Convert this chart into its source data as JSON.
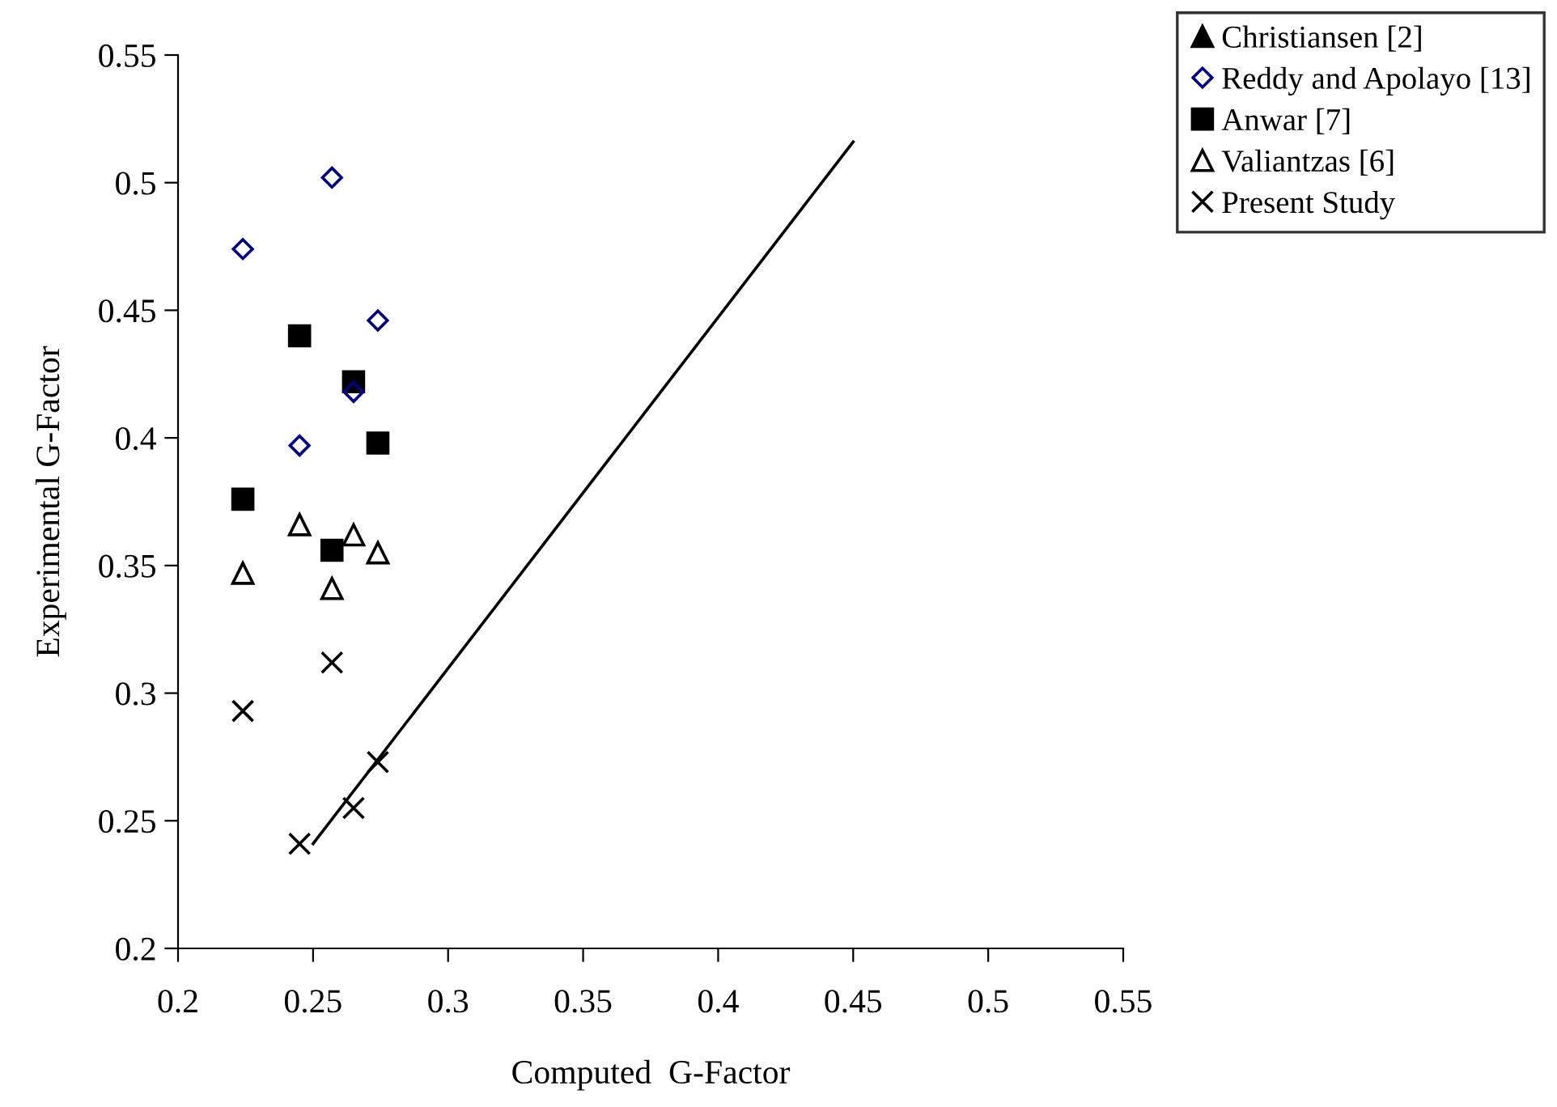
{
  "chart_data": {
    "type": "scatter",
    "xlabel": "Computed  G-Factor",
    "ylabel": "Experimental G-Factor",
    "xlim": [
      0.2,
      0.55
    ],
    "ylim": [
      0.2,
      0.55
    ],
    "xticks": [
      0.2,
      0.25,
      0.3,
      0.35,
      0.4,
      0.45,
      0.5,
      0.55
    ],
    "yticks": [
      0.2,
      0.25,
      0.3,
      0.35,
      0.4,
      0.45,
      0.5,
      0.55
    ],
    "x": [
      0.224,
      0.245,
      0.257,
      0.265,
      0.274
    ],
    "grid": false,
    "legend": "top right",
    "series": [
      {
        "name": "Christiansen [2]",
        "color": "#000000",
        "marker": "triangle_filled",
        "values": [
          null,
          null,
          null,
          null,
          null
        ]
      },
      {
        "name": "Reddy and Apolayo [13]",
        "color": "#000080",
        "marker": "diamond",
        "values": [
          0.474,
          0.397,
          0.502,
          0.418,
          0.446
        ]
      },
      {
        "name": "Anwar [7]",
        "color": "#000000",
        "marker": "square",
        "values": [
          0.376,
          0.44,
          0.356,
          0.422,
          0.398
        ]
      },
      {
        "name": "Valiantzas [6]",
        "color": "#000000",
        "marker": "triangle",
        "values": [
          0.347,
          0.366,
          0.341,
          0.362,
          0.355
        ]
      },
      {
        "name": "Present Study",
        "color": "#000000",
        "marker": "cross",
        "values": [
          0.293,
          0.241,
          0.312,
          0.255,
          0.273
        ]
      },
      {
        "type": "line",
        "color": "#000000",
        "marker": "none",
        "x": [
          0.25,
          0.45
        ],
        "values": [
          0.241,
          0.516
        ]
      }
    ]
  }
}
